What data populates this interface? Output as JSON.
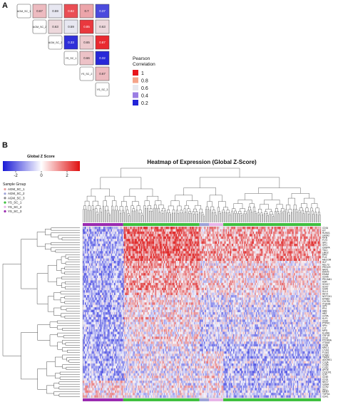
{
  "panel_a_label": "A",
  "panel_b_label": "B",
  "chart_data": [
    {
      "type": "heatmap",
      "subtype": "correlation-matrix-upper-triangle",
      "samples": [
        "AGM_SC_1",
        "AGM_SC_2",
        "AGM_SC_3",
        "YS_SC_1",
        "YS_SC_2",
        "YS_SC_3"
      ],
      "matrix": [
        [
          null,
          0.67,
          0.59,
          0.82,
          0.7,
          0.37
        ],
        [
          null,
          null,
          0.63,
          0.59,
          0.85,
          0.63
        ],
        [
          null,
          null,
          null,
          0.33,
          0.65,
          0.87
        ],
        [
          null,
          null,
          null,
          null,
          0.66,
          0.32
        ],
        [
          null,
          null,
          null,
          null,
          null,
          0.67
        ],
        [
          null,
          null,
          null,
          null,
          null,
          null
        ]
      ],
      "legend_title": "Pearson\nCorrelation",
      "legend": [
        {
          "label": "1",
          "color": "#e8141a"
        },
        {
          "label": "0.8",
          "color": "#f5a48a"
        },
        {
          "label": "0.6",
          "color": "#e8e8ee"
        },
        {
          "label": "0.4",
          "color": "#9b7de3"
        },
        {
          "label": "0.2",
          "color": "#2224d8"
        }
      ],
      "colors": {
        "high": "#e8141a",
        "mid": "#eeeef2",
        "low": "#1a1ad6"
      }
    },
    {
      "type": "heatmap",
      "subtype": "clustered-expression-heatmap",
      "title": "Heatmap of Expression (Global Z-Score)",
      "colorbar": {
        "title": "Global Z Score",
        "ticks": [
          "-2",
          "0",
          "2"
        ],
        "range": [
          -3,
          3
        ],
        "colors": {
          "low": "#1a1ad6",
          "mid": "#ffffff",
          "high": "#e01010"
        }
      },
      "sample_group_legend": {
        "title": "Sample Group",
        "items": [
          {
            "label": "AGM_SC_1",
            "color": "#e8a0a0"
          },
          {
            "label": "AGM_SC_2",
            "color": "#9da3d8"
          },
          {
            "label": "AGM_SC_3",
            "color": "#8a8a8a"
          },
          {
            "label": "YS_SC_1",
            "color": "#3fbf3f"
          },
          {
            "label": "YS_SC_2",
            "color": "#e8b4e8"
          },
          {
            "label": "YS_SC_3",
            "color": "#9a2ab0"
          }
        ]
      },
      "row_labels": [
        "CD34",
        "KIT",
        "RUNX1",
        "GATA2",
        "MYB",
        "FLT3",
        "SPI1",
        "GFI1",
        "CEBPA",
        "TAL1",
        "LMO2",
        "ERG",
        "FLI1",
        "MECOM",
        "HLF",
        "MLLT3",
        "PROCR",
        "NRP1",
        "EMCN",
        "ESAM",
        "CDH5",
        "PECAM1",
        "KDR",
        "SOX17",
        "SOX7",
        "GJA5",
        "DLL4",
        "HEY2",
        "NOTCH1",
        "EFNB2",
        "CXCR4",
        "ITGA2B",
        "GP9",
        "PF4",
        "HBB",
        "HBZ",
        "GYPA",
        "KLF1",
        "CD44",
        "PTPRC",
        "SPN",
        "LYZ",
        "MPO",
        "ELANE",
        "CSF1R",
        "CD14",
        "FCGR3A",
        "ITGAM",
        "CD68",
        "MRC1",
        "LYVE1",
        "F13A1",
        "STAB1",
        "TIMD4",
        "ADGRE1",
        "C1QA",
        "C1QB",
        "C1QC",
        "APOE",
        "CX3CR1",
        "IL7R",
        "CD3E",
        "CD19",
        "NKG7",
        "GZMA",
        "CCR2",
        "SELL",
        "MKI67",
        "TOP2A",
        "CDK1"
      ],
      "annotation_bar": [
        {
          "group": "YS_SC_3",
          "fraction": 0.17
        },
        {
          "group": "YS_SC_1",
          "fraction": 0.32
        },
        {
          "group": "AGM_SC_2",
          "fraction": 0.04
        },
        {
          "group": "YS_SC_2",
          "fraction": 0.06
        },
        {
          "group": "YS_SC_1",
          "fraction": 0.41
        }
      ]
    }
  ]
}
